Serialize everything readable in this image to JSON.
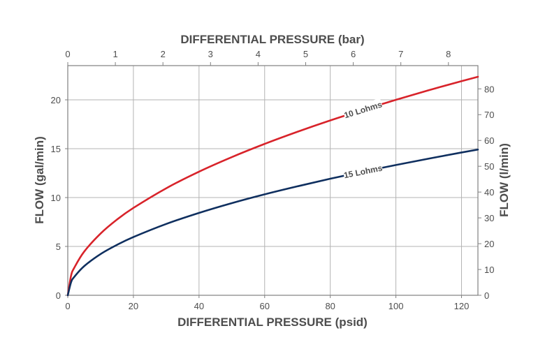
{
  "chart_data": {
    "type": "line",
    "title": "",
    "x_axes": {
      "bottom": {
        "label": "DIFFERENTIAL PRESSURE (psid)",
        "range": [
          0,
          125
        ],
        "ticks": [
          0,
          20,
          40,
          60,
          80,
          100,
          120
        ],
        "grid": true
      },
      "top": {
        "label": "DIFFERENTIAL PRESSURE (bar)",
        "range": [
          0,
          8.62
        ],
        "ticks": [
          0,
          1,
          2,
          3,
          4,
          5,
          6,
          7,
          8
        ]
      }
    },
    "y_axes": {
      "left": {
        "label": "FLOW (gal/min)",
        "range": [
          0,
          23.5
        ],
        "ticks": [
          0,
          5,
          10,
          15,
          20
        ],
        "grid": true
      },
      "right": {
        "label": "FLOW (l/min)",
        "range": [
          0,
          89
        ],
        "ticks": [
          0,
          10,
          20,
          30,
          40,
          50,
          60,
          70,
          80
        ]
      }
    },
    "series": [
      {
        "name": "10 Lohms",
        "color": "#d8232a",
        "x": [
          0,
          1,
          2,
          5,
          10,
          15,
          20,
          30,
          40,
          50,
          60,
          70,
          80,
          90,
          100,
          110,
          120,
          125
        ],
        "y": [
          0,
          2.0,
          2.83,
          4.47,
          6.32,
          7.75,
          8.94,
          10.95,
          12.65,
          14.14,
          15.49,
          16.73,
          17.89,
          18.97,
          20.0,
          20.98,
          21.91,
          22.36
        ]
      },
      {
        "name": "15 Lohms",
        "color": "#0f2f5f",
        "x": [
          0,
          1,
          2,
          5,
          10,
          15,
          20,
          30,
          40,
          50,
          60,
          70,
          80,
          90,
          100,
          110,
          120,
          125
        ],
        "y": [
          0,
          1.33,
          1.89,
          2.98,
          4.22,
          5.16,
          5.96,
          7.3,
          8.43,
          9.43,
          10.33,
          11.15,
          11.93,
          12.65,
          13.33,
          13.98,
          14.61,
          14.91
        ]
      }
    ],
    "annotations": [
      {
        "text": "10 Lohms",
        "series": "10 Lohms",
        "at_x": 90
      },
      {
        "text": "15 Lohms",
        "series": "15 Lohms",
        "at_x": 90
      }
    ],
    "legend": "none"
  }
}
